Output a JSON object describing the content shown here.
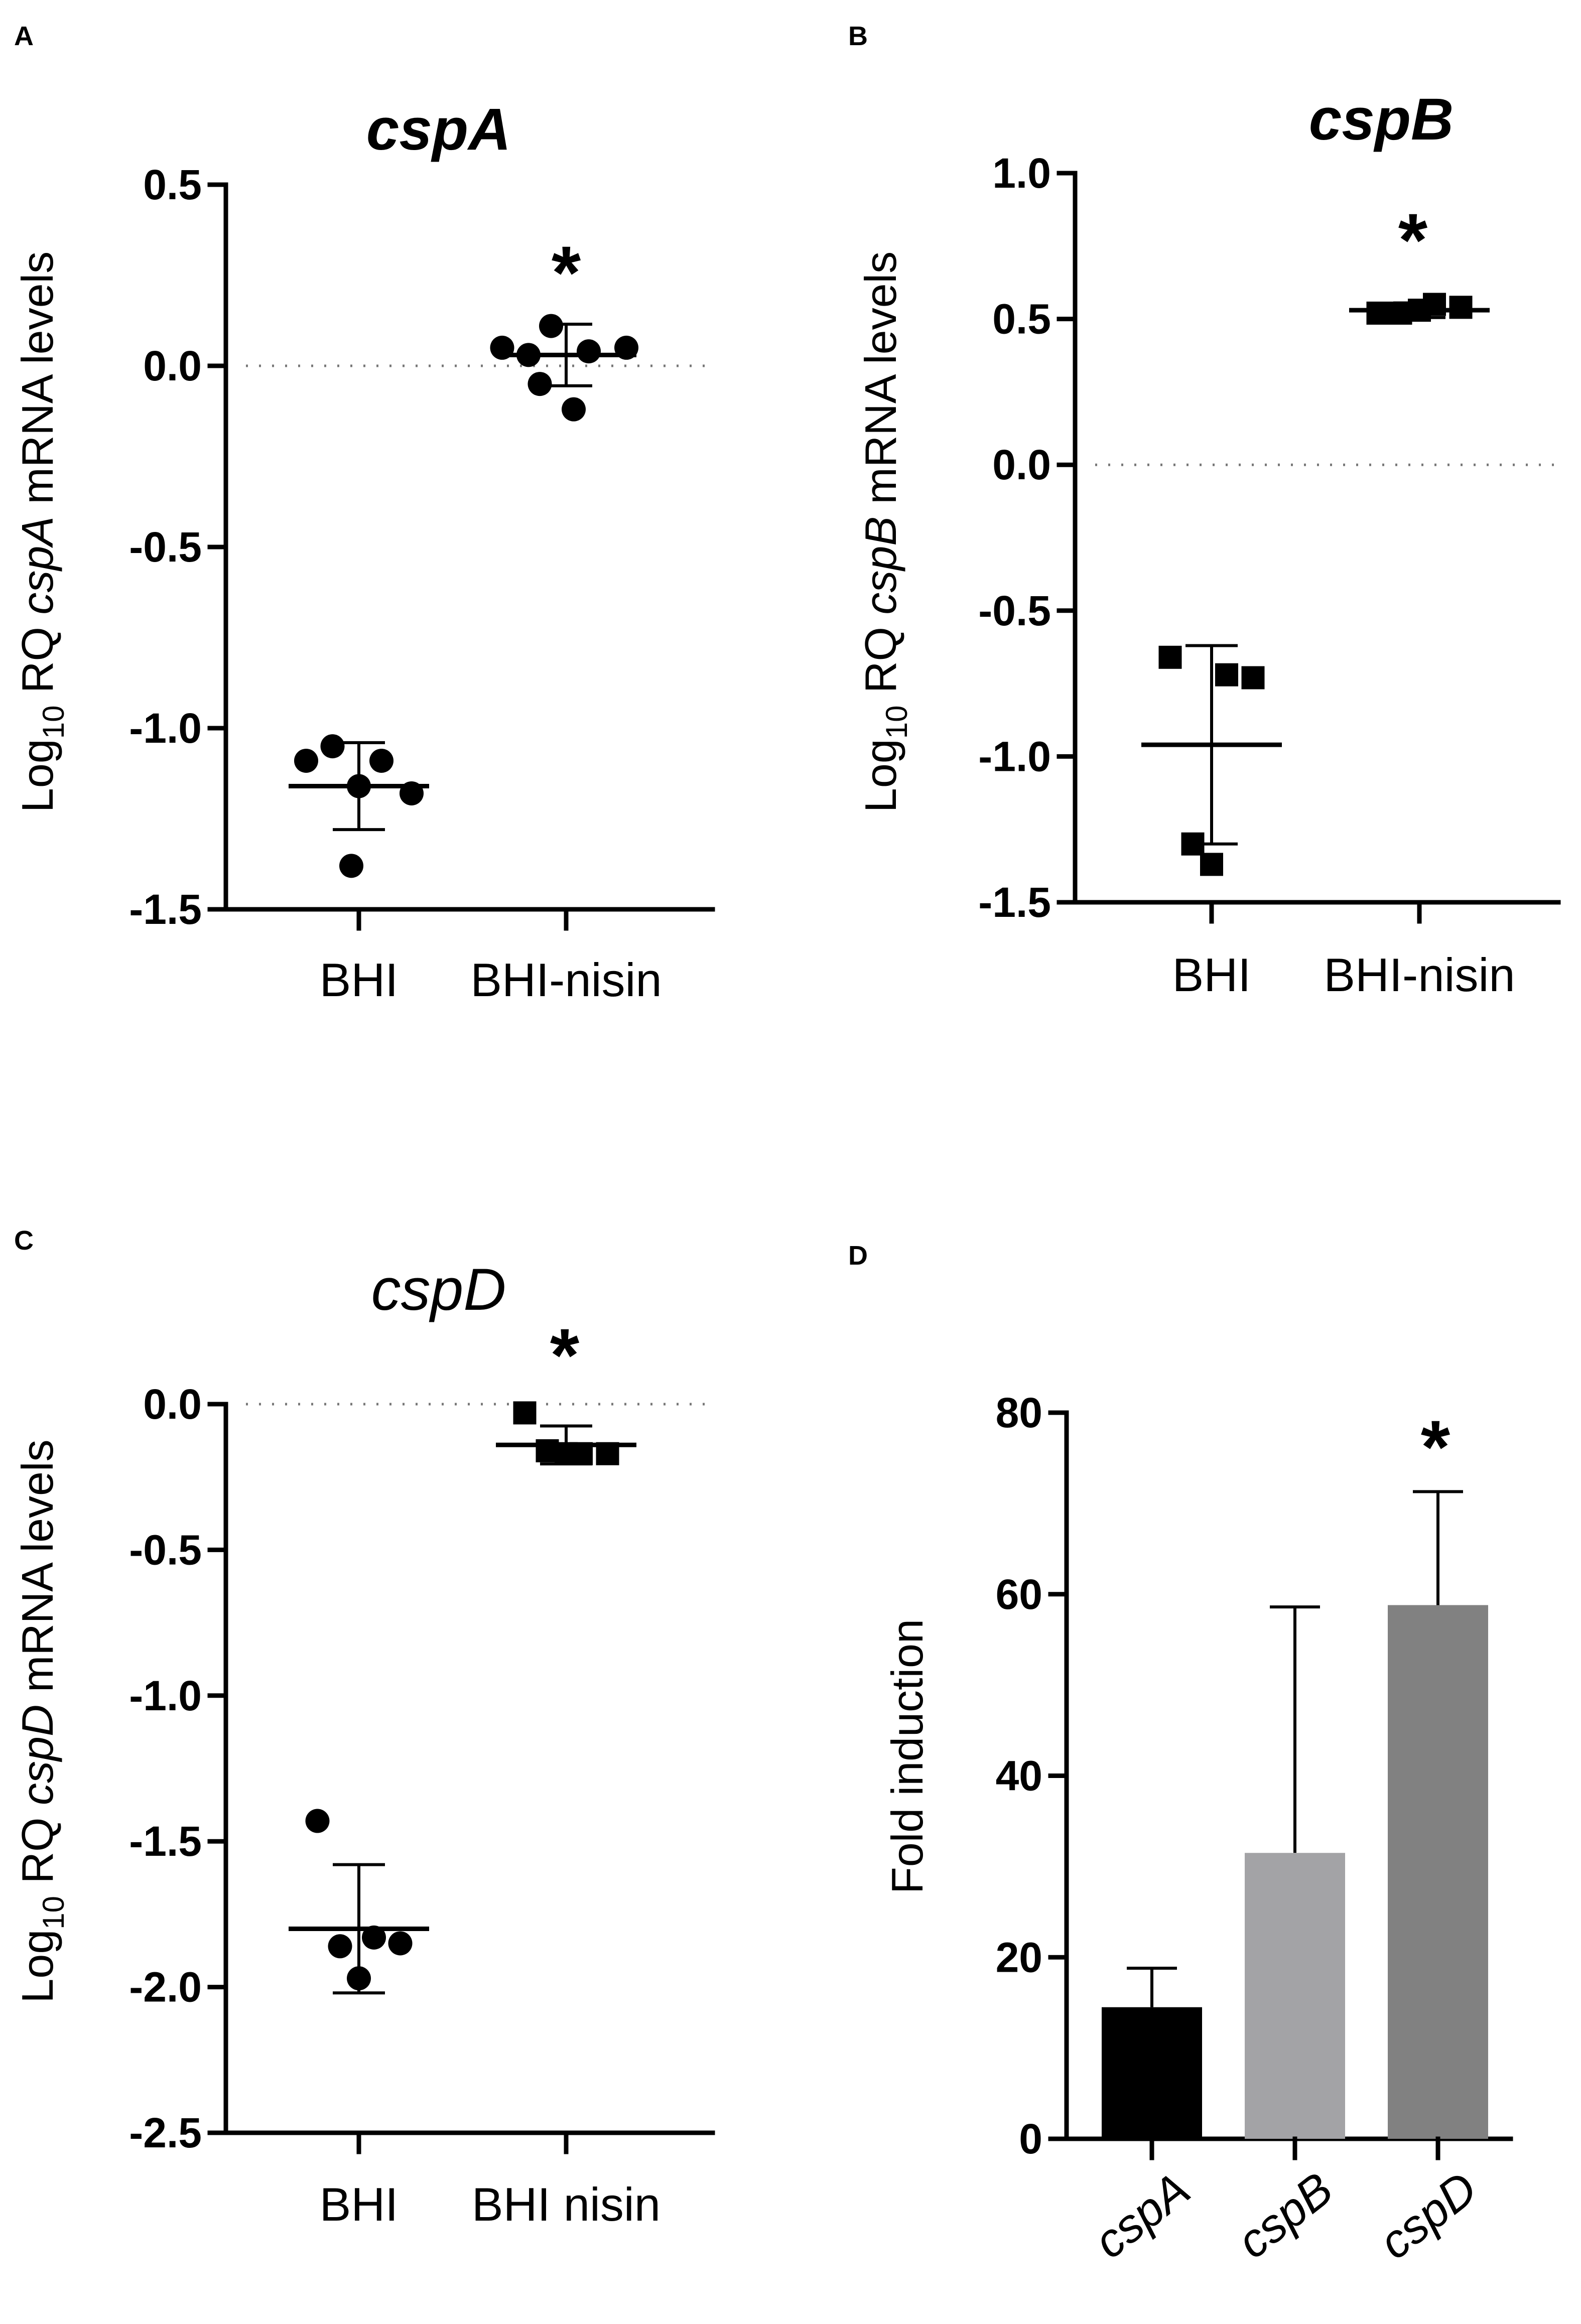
{
  "chart_data": [
    {
      "id": "A",
      "panel_label": "A",
      "type": "scatter",
      "title": "cspA",
      "title_bold": true,
      "ylabel": {
        "prefix": "Log",
        "sub": "10",
        "mid": " RQ ",
        "gene": "cspA",
        "suffix": " mRNA levels"
      },
      "ylim": [
        -1.5,
        0.5
      ],
      "yticks": [
        0.5,
        0.0,
        -0.5,
        -1.0,
        -1.5
      ],
      "ytick_labels": [
        "0.5",
        "0.0",
        "-0.5",
        "-1.0",
        "-1.5"
      ],
      "reference_line": 0.0,
      "marker": "circle",
      "categories": [
        "BHI",
        "BHI-nisin"
      ],
      "groups": [
        {
          "category": "BHI",
          "points": [
            -1.05,
            -1.09,
            -1.09,
            -1.16,
            -1.18,
            -1.38
          ],
          "mean": -1.16,
          "sd": 0.12,
          "significant": false
        },
        {
          "category": "BHI-nisin",
          "points": [
            0.11,
            0.05,
            0.04,
            0.03,
            0.05,
            -0.05,
            -0.12
          ],
          "mean": 0.03,
          "sd": 0.085,
          "significant": true
        }
      ],
      "significance_marker": "*"
    },
    {
      "id": "B",
      "panel_label": "B",
      "type": "scatter",
      "title": "cspB",
      "title_bold": true,
      "ylabel": {
        "prefix": "Log",
        "sub": "10",
        "mid": " RQ ",
        "gene": "cspB",
        "suffix": " mRNA levels"
      },
      "ylim": [
        -1.5,
        1.0
      ],
      "yticks": [
        1.0,
        0.5,
        0.0,
        -0.5,
        -1.0,
        -1.5
      ],
      "ytick_labels": [
        "1.0",
        "0.5",
        "0.0",
        "-0.5",
        "-1.0",
        "-1.5"
      ],
      "reference_line": 0.0,
      "marker": "square",
      "categories": [
        "BHI",
        "BHI-nisin"
      ],
      "groups": [
        {
          "category": "BHI",
          "points": [
            -0.66,
            -0.72,
            -0.73,
            -1.3,
            -1.37
          ],
          "mean": -0.96,
          "sd": 0.34,
          "significant": false
        },
        {
          "category": "BHI-nisin",
          "points": [
            0.52,
            0.55,
            0.54,
            0.52,
            0.53
          ],
          "mean": 0.53,
          "sd": 0.025,
          "significant": true
        }
      ],
      "significance_marker": "*"
    },
    {
      "id": "C",
      "panel_label": "C",
      "type": "scatter",
      "title": "cspD",
      "title_bold": false,
      "ylabel": {
        "prefix": "Log",
        "sub": "10",
        "mid": " RQ ",
        "gene": "cspD",
        "suffix": " mRNA levels"
      },
      "ylim": [
        -2.5,
        0.0
      ],
      "yticks": [
        0.0,
        -0.5,
        -1.0,
        -1.5,
        -2.0,
        -2.5
      ],
      "ytick_labels": [
        "0.0",
        "-0.5",
        "-1.0",
        "-1.5",
        "-2.0",
        "-2.5"
      ],
      "reference_line": 0.0,
      "marker": "mixed",
      "categories": [
        "BHI",
        "BHI nisin"
      ],
      "groups": [
        {
          "category": "BHI",
          "points": [
            -1.43,
            -1.83,
            -1.85,
            -1.86,
            -1.97
          ],
          "mean": -1.8,
          "sd": 0.22,
          "significant": false
        },
        {
          "category": "BHI nisin",
          "points": [
            -0.03,
            -0.17,
            -0.17,
            -0.16,
            -0.17
          ],
          "mean": -0.14,
          "sd": 0.065,
          "significant": true
        }
      ],
      "significance_marker": "*"
    },
    {
      "id": "D",
      "panel_label": "D",
      "type": "bar",
      "title": "",
      "ylabel": "Fold induction",
      "ylim": [
        0,
        80
      ],
      "yticks": [
        0,
        20,
        40,
        60,
        80
      ],
      "ytick_labels": [
        "0",
        "20",
        "40",
        "60",
        "80"
      ],
      "categories": [
        "cspA",
        "cspB",
        "cspD"
      ],
      "values": [
        14.5,
        31.5,
        58.8
      ],
      "errors": [
        4.3,
        27.1,
        12.5
      ],
      "colors": [
        "#000000",
        "#a3a3a6",
        "#818181"
      ],
      "significant": [
        false,
        false,
        true
      ],
      "significance_marker": "*"
    }
  ]
}
